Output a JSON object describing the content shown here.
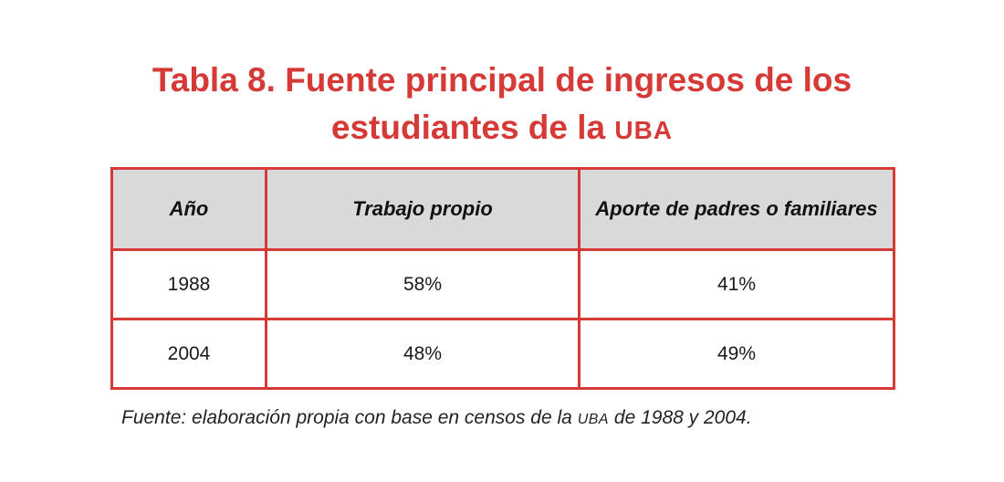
{
  "title": {
    "line1": "Tabla 8. Fuente principal de ingresos de los",
    "line2_prefix": "estudiantes de la ",
    "line2_acronym": "UBA"
  },
  "table": {
    "headers": [
      "Año",
      "Trabajo propio",
      "Aporte de padres o familiares"
    ],
    "rows": [
      [
        "1988",
        "58%",
        "41%"
      ],
      [
        "2004",
        "48%",
        "49%"
      ]
    ]
  },
  "source": {
    "prefix": "Fuente: elaboración propia con base en censos de la ",
    "acronym": "UBA",
    "suffix": " de 1988 y 2004."
  },
  "colors": {
    "accent": "#d63a36",
    "header_bg": "#d9d9d9"
  }
}
